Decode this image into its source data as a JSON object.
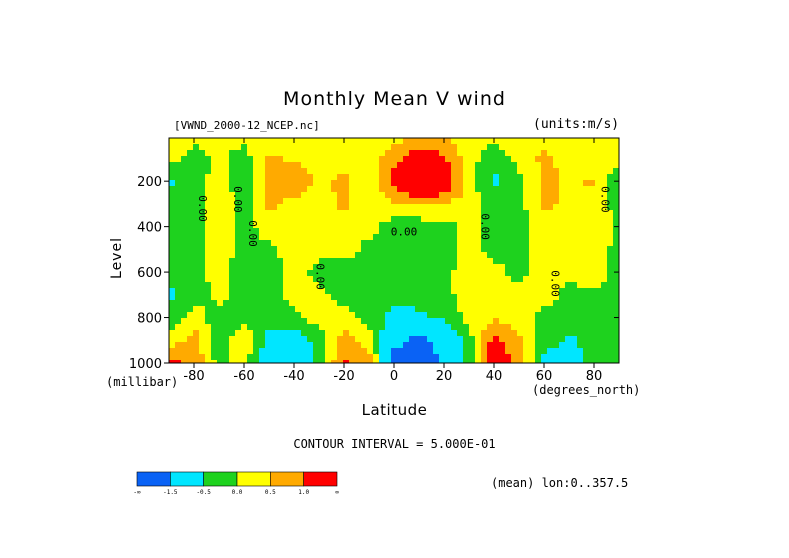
{
  "chart_data": {
    "type": "heatmap",
    "title": "Monthly Mean V wind",
    "dataset_label": "[VWND_2000-12_NCEP.nc]",
    "units_label": "(units:m/s)",
    "xlabel": "Latitude",
    "ylabel": "Level",
    "x_units_label": "(degrees_north)",
    "y_units_label": "(millibar)",
    "x_ticks": [
      "-80",
      "-60",
      "-40",
      "-20",
      "0",
      "20",
      "40",
      "60",
      "80"
    ],
    "x_tick_values": [
      -80,
      -60,
      -40,
      -20,
      0,
      20,
      40,
      60,
      80
    ],
    "y_ticks": [
      "200",
      "400",
      "600",
      "800",
      "1000"
    ],
    "y_tick_values": [
      200,
      400,
      600,
      800,
      1000
    ],
    "xlim": [
      -90,
      90
    ],
    "ylim": [
      1000,
      10
    ],
    "y_reversed": true,
    "contour_interval_label": "CONTOUR INTERVAL = 5.000E-01",
    "mean_label": "(mean) lon:0..357.5",
    "contour_labels": [
      "0.00",
      "0.00",
      "0.00",
      "0.00",
      "0.00",
      "0.00",
      "0.00",
      "0.00"
    ],
    "colorbar": {
      "labels": [
        "-∞",
        "-1.5",
        "-0.5",
        "0.0",
        "0.5",
        "1.0",
        "∞"
      ],
      "colors": [
        "#0a62f5",
        "#00e6ff",
        "#1ed21e",
        "#ffff00",
        "#ffaa00",
        "#ff0000"
      ]
    },
    "field": {
      "lat": [
        -90,
        -80,
        -70,
        -60,
        -50,
        -40,
        -30,
        -20,
        -10,
        0,
        10,
        20,
        30,
        40,
        50,
        60,
        70,
        80,
        90
      ],
      "level": [
        10,
        100,
        200,
        300,
        400,
        500,
        600,
        700,
        800,
        900,
        1000
      ],
      "values": [
        [
          0.6,
          0.1,
          0.2,
          0.1,
          0.0,
          0.3,
          0.2,
          0.1,
          0.2,
          0.3,
          0.6,
          0.5,
          0.2,
          0.1,
          0.2,
          0.3,
          0.2,
          0.1,
          0.3
        ],
        [
          0.3,
          -0.2,
          0.1,
          -0.2,
          0.6,
          0.4,
          0.3,
          0.4,
          0.3,
          0.8,
          1.5,
          1.1,
          0.2,
          -0.3,
          0.2,
          0.6,
          0.3,
          0.1,
          0.4
        ],
        [
          -0.7,
          -0.2,
          0.2,
          -0.3,
          0.6,
          0.9,
          0.4,
          0.6,
          0.2,
          1.2,
          2.0,
          1.6,
          0.2,
          -0.6,
          -0.2,
          0.7,
          0.4,
          0.6,
          -0.6
        ],
        [
          -0.2,
          -0.3,
          0.3,
          -0.2,
          0.6,
          0.3,
          0.3,
          0.6,
          0.3,
          0.4,
          0.6,
          0.5,
          0.3,
          -0.3,
          -0.2,
          0.6,
          0.4,
          0.3,
          -0.2
        ],
        [
          -0.2,
          -0.2,
          0.4,
          -0.3,
          0.4,
          0.2,
          0.3,
          0.4,
          0.2,
          -0.3,
          -0.3,
          -0.2,
          0.2,
          -0.3,
          -0.2,
          0.3,
          0.2,
          0.4,
          -0.1
        ],
        [
          -0.3,
          -0.2,
          0.3,
          -0.2,
          -0.2,
          0.3,
          0.2,
          0.3,
          -0.2,
          -0.2,
          -0.2,
          -0.3,
          0.3,
          -0.2,
          -0.2,
          0.2,
          0.3,
          0.3,
          -0.2
        ],
        [
          -0.3,
          -0.2,
          0.2,
          -0.3,
          -0.2,
          0.2,
          -0.2,
          -0.3,
          -0.2,
          -0.2,
          -0.3,
          -0.2,
          0.3,
          0.2,
          -0.2,
          0.3,
          0.2,
          0.3,
          -0.2
        ],
        [
          -0.6,
          -0.3,
          0.2,
          -0.2,
          -0.2,
          0.2,
          0.2,
          -0.3,
          -0.2,
          -0.3,
          -0.3,
          -0.2,
          0.3,
          0.3,
          0.2,
          0.3,
          -0.2,
          -0.1,
          -0.2
        ],
        [
          -0.4,
          0.3,
          -0.3,
          -0.2,
          -0.2,
          -0.2,
          0.3,
          0.3,
          -0.2,
          -0.7,
          -0.6,
          -0.4,
          0.2,
          0.4,
          0.3,
          -0.2,
          -0.2,
          -0.2,
          -0.2
        ],
        [
          0.2,
          0.7,
          -0.3,
          0.4,
          -0.7,
          -0.8,
          -0.3,
          0.7,
          0.3,
          -1.3,
          -1.7,
          -1.2,
          -0.2,
          1.2,
          0.6,
          -0.3,
          -0.6,
          -0.3,
          -0.2
        ],
        [
          1.2,
          0.9,
          -0.2,
          0.2,
          -1.1,
          -1.2,
          -0.3,
          1.1,
          0.8,
          -1.8,
          -2.0,
          -1.4,
          -0.2,
          1.4,
          0.8,
          -0.6,
          -0.8,
          -0.3,
          -0.2
        ]
      ]
    }
  }
}
